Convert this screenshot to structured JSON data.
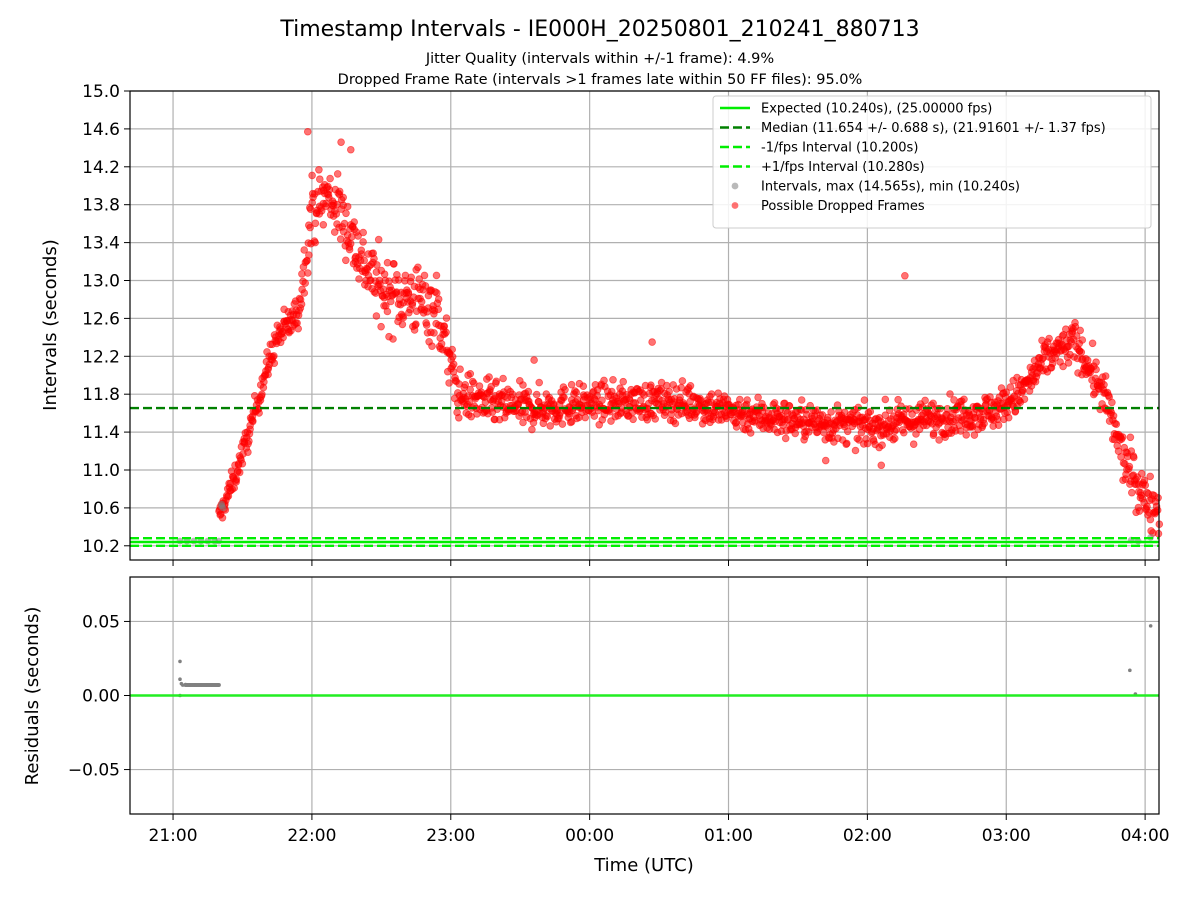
{
  "chart_data": {
    "title": "Timestamp Intervals - IE000H_20250801_210241_880713",
    "subtitle_1": "Jitter Quality (intervals within +/-1 frame): 4.9%",
    "subtitle_2": "Dropped Frame Rate (intervals >1 frames late within 50 FF files): 95.0%",
    "xlabel": "Time (UTC)",
    "x_ticks": [
      "21:00",
      "22:00",
      "23:00",
      "00:00",
      "01:00",
      "02:00",
      "03:00",
      "04:00"
    ],
    "x_range_hours": [
      20.69,
      28.1
    ],
    "top": {
      "type": "scatter",
      "ylabel": "Intervals (seconds)",
      "ylim": [
        10.05,
        15.0
      ],
      "y_ticks": [
        "10.2",
        "10.6",
        "11.0",
        "11.4",
        "11.8",
        "12.2",
        "12.6",
        "13.0",
        "13.4",
        "13.8",
        "14.2",
        "14.6",
        "15.0"
      ],
      "grid": true,
      "legend_position": "top-right",
      "lines": [
        {
          "name": "Expected (10.240s), (25.00000 fps)",
          "y": 10.24,
          "color": "#00ee00",
          "style": "solid"
        },
        {
          "name": "Median (11.654 +/- 0.688 s), (21.91601 +/- 1.37 fps)",
          "y": 11.654,
          "color": "#008000",
          "style": "dashed"
        },
        {
          "name": "-1/fps Interval (10.200s)",
          "y": 10.2,
          "color": "#00ee00",
          "style": "dashed"
        },
        {
          "name": "+1/fps Interval (10.280s)",
          "y": 10.28,
          "color": "#00ee00",
          "style": "dashed"
        }
      ],
      "series": [
        {
          "name": "Intervals, max (14.565s), min (10.240s)",
          "color": "#808080",
          "points": [
            [
              21.05,
              10.25
            ],
            [
              21.1,
              10.25
            ],
            [
              21.15,
              10.25
            ],
            [
              21.2,
              10.25
            ],
            [
              21.25,
              10.25
            ],
            [
              21.3,
              10.25
            ],
            [
              21.33,
              10.25
            ],
            [
              21.35,
              10.62
            ],
            [
              21.35,
              10.64
            ],
            [
              21.36,
              10.6
            ],
            [
              27.9,
              10.26
            ],
            [
              27.95,
              10.25
            ],
            [
              28.04,
              10.29
            ]
          ]
        },
        {
          "name": "Possible Dropped Frames",
          "color": "#ff0000",
          "trend": [
            [
              21.33,
              10.5
            ],
            [
              21.45,
              10.95
            ],
            [
              21.55,
              11.4
            ],
            [
              21.65,
              11.95
            ],
            [
              21.75,
              12.4
            ],
            [
              21.9,
              12.65
            ],
            [
              22.0,
              13.75
            ],
            [
              22.12,
              13.9
            ],
            [
              22.25,
              13.6
            ],
            [
              22.35,
              13.25
            ],
            [
              22.5,
              12.9
            ],
            [
              22.6,
              12.85
            ],
            [
              22.75,
              12.8
            ],
            [
              22.9,
              12.7
            ],
            [
              23.05,
              11.8
            ],
            [
              23.3,
              11.7
            ],
            [
              23.6,
              11.65
            ],
            [
              24.0,
              11.7
            ],
            [
              24.3,
              11.72
            ],
            [
              24.7,
              11.72
            ],
            [
              25.0,
              11.62
            ],
            [
              25.5,
              11.52
            ],
            [
              26.0,
              11.45
            ],
            [
              26.5,
              11.55
            ],
            [
              26.9,
              11.62
            ],
            [
              27.1,
              11.8
            ],
            [
              27.3,
              12.2
            ],
            [
              27.5,
              12.35
            ],
            [
              27.7,
              11.8
            ],
            [
              27.85,
              11.1
            ],
            [
              28.0,
              10.7
            ],
            [
              28.1,
              10.6
            ]
          ],
          "spread": [
            [
              21.33,
              0.12
            ],
            [
              21.9,
              0.2
            ],
            [
              22.0,
              0.35
            ],
            [
              22.9,
              0.4
            ],
            [
              23.05,
              0.25
            ],
            [
              24.0,
              0.2
            ],
            [
              27.0,
              0.2
            ],
            [
              27.5,
              0.22
            ],
            [
              27.75,
              0.25
            ],
            [
              28.1,
              0.28
            ]
          ],
          "outliers": [
            [
              21.97,
              14.57
            ],
            [
              22.21,
              14.46
            ],
            [
              22.28,
              14.38
            ],
            [
              23.6,
              12.16
            ],
            [
              26.27,
              13.05
            ],
            [
              26.1,
              11.05
            ],
            [
              25.7,
              11.1
            ],
            [
              23.87,
              11.9
            ],
            [
              24.45,
              12.35
            ]
          ]
        }
      ]
    },
    "bottom": {
      "type": "scatter",
      "ylabel": "Residuals (seconds)",
      "ylim": [
        -0.08,
        0.08
      ],
      "y_ticks": [
        "0.05",
        "0.00",
        "−0.05"
      ],
      "y_tick_values": [
        0.05,
        0.0,
        -0.05
      ],
      "zero_line_color": "#22ee22",
      "series": [
        {
          "name": "Residuals",
          "color": "#808080",
          "points": [
            [
              21.05,
              0.023
            ],
            [
              21.05,
              0.011
            ],
            [
              21.05,
              0.0
            ],
            [
              21.06,
              0.008
            ],
            [
              21.07,
              0.007
            ],
            [
              21.09,
              0.0074
            ],
            [
              21.12,
              0.0072
            ],
            [
              21.16,
              0.0072
            ],
            [
              21.2,
              0.0071
            ],
            [
              21.24,
              0.0071
            ],
            [
              21.28,
              0.0071
            ],
            [
              21.32,
              0.007
            ],
            [
              27.89,
              0.017
            ],
            [
              27.93,
              0.001
            ],
            [
              28.04,
              0.047
            ]
          ]
        }
      ]
    }
  }
}
